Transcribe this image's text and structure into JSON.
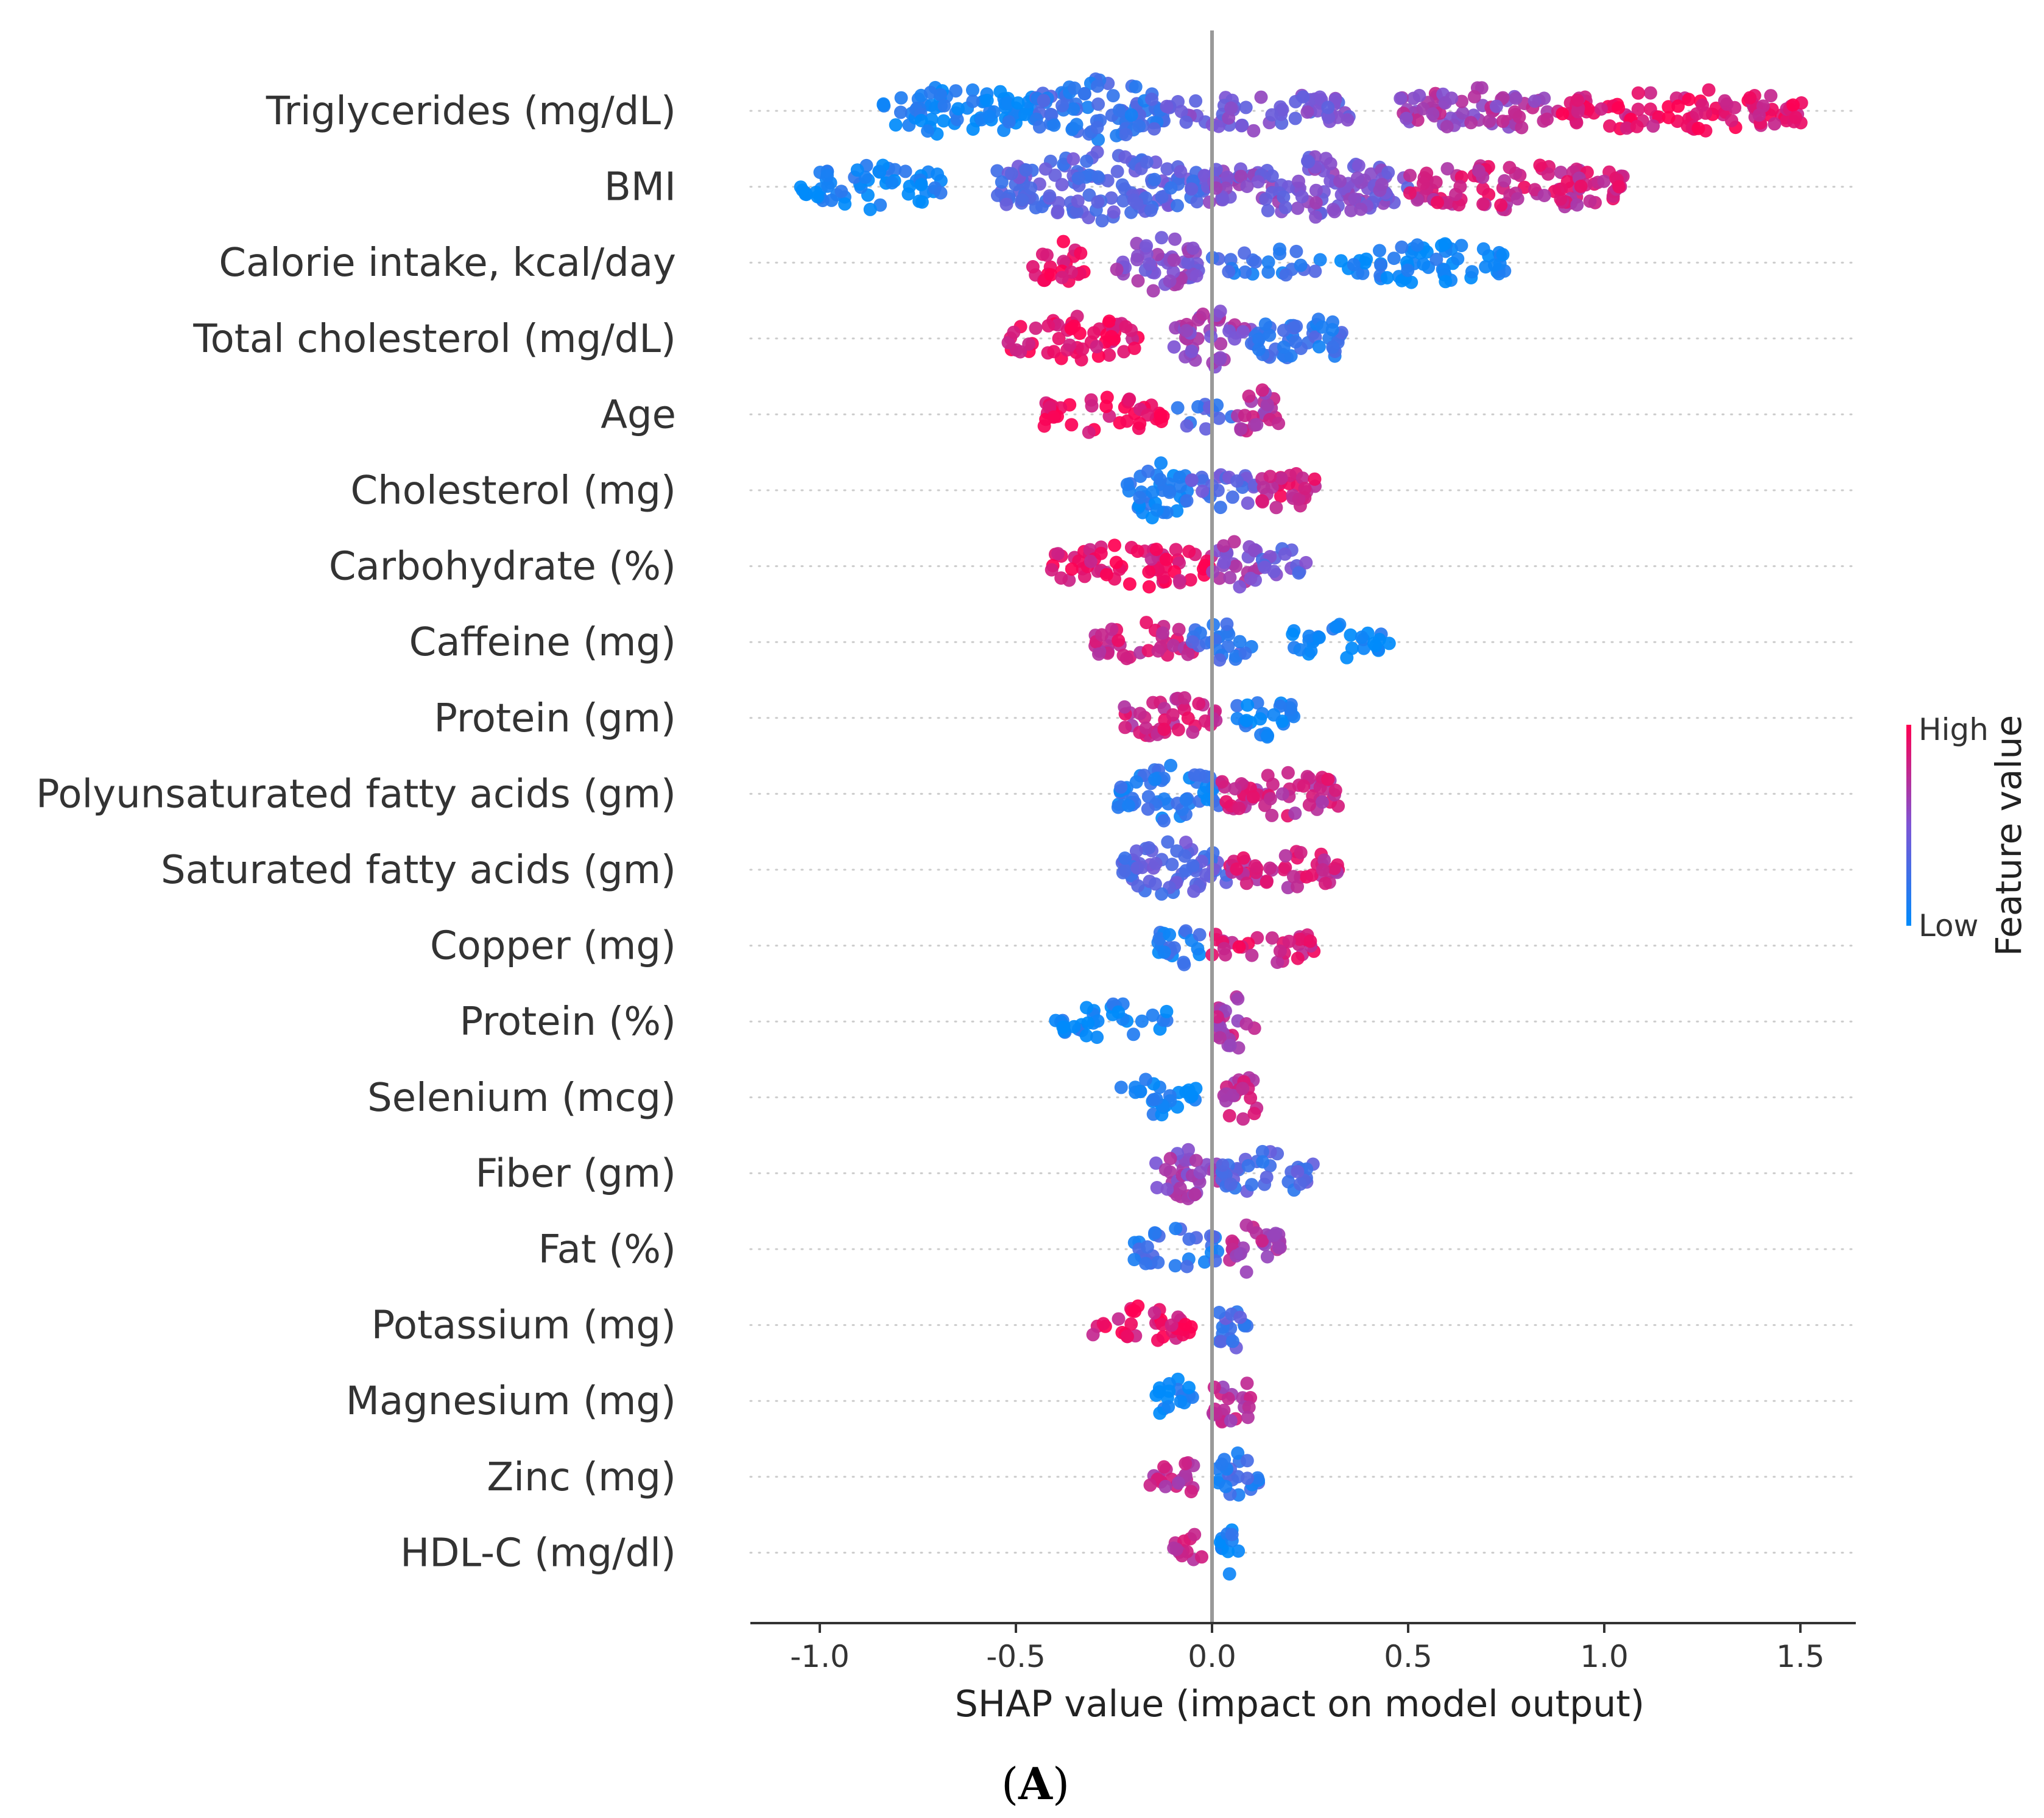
{
  "chart_data": {
    "type": "scatter",
    "subtype": "shap-beeswarm-summary",
    "xlabel": "SHAP value (impact on model output)",
    "xlim": [
      -1.18,
      1.64
    ],
    "xticks": [
      -1.0,
      -0.5,
      0.0,
      0.5,
      1.0,
      1.5
    ],
    "xtick_labels": [
      "-1.0",
      "-0.5",
      "0.0",
      "0.5",
      "1.0",
      "1.5"
    ],
    "zero_line": 0.0,
    "colorbar": {
      "title": "Feature value",
      "high_label": "High",
      "low_label": "Low",
      "high_color": "#ff0052",
      "low_color": "#008bfb"
    },
    "panel_label": {
      "open": "(",
      "letter": "A",
      "close": ")"
    },
    "features": [
      {
        "name": "Triglycerides (mg/dL)",
        "segments": [
          {
            "from": -0.84,
            "to": -0.45,
            "level": 0.05,
            "density": 0.75
          },
          {
            "from": -0.45,
            "to": -0.12,
            "level": 0.22,
            "density": 1.0
          },
          {
            "from": -0.12,
            "to": 0.35,
            "level": 0.45,
            "density": 0.5
          },
          {
            "from": 0.48,
            "to": 0.88,
            "level": 0.65,
            "density": 0.65
          },
          {
            "from": 0.88,
            "to": 1.52,
            "level": 0.9,
            "density": 0.6
          }
        ]
      },
      {
        "name": "BMI",
        "segments": [
          {
            "from": -1.05,
            "to": -0.68,
            "level": 0.05,
            "density": 0.6
          },
          {
            "from": -0.55,
            "to": -0.02,
            "level": 0.35,
            "density": 1.0
          },
          {
            "from": -0.02,
            "to": 0.5,
            "level": 0.5,
            "density": 0.9
          },
          {
            "from": 0.5,
            "to": 1.05,
            "level": 0.8,
            "density": 0.7
          }
        ]
      },
      {
        "name": "Calorie intake, kcal/day",
        "segments": [
          {
            "from": -0.47,
            "to": -0.32,
            "level": 0.95,
            "density": 0.6
          },
          {
            "from": -0.25,
            "to": -0.03,
            "level": 0.55,
            "density": 0.85
          },
          {
            "from": 0.0,
            "to": 0.3,
            "level": 0.2,
            "density": 0.3
          },
          {
            "from": 0.32,
            "to": 0.75,
            "level": 0.05,
            "density": 0.55
          }
        ]
      },
      {
        "name": "Total cholesterol (mg/dL)",
        "segments": [
          {
            "from": -0.52,
            "to": -0.18,
            "level": 0.92,
            "density": 0.65
          },
          {
            "from": -0.1,
            "to": 0.1,
            "level": 0.6,
            "density": 0.85
          },
          {
            "from": 0.1,
            "to": 0.34,
            "level": 0.2,
            "density": 0.8
          }
        ]
      },
      {
        "name": "Age",
        "segments": [
          {
            "from": -0.46,
            "to": -0.12,
            "level": 0.95,
            "density": 0.45
          },
          {
            "from": -0.1,
            "to": 0.06,
            "level": 0.3,
            "density": 0.3
          },
          {
            "from": 0.06,
            "to": 0.17,
            "level": 0.7,
            "density": 0.8
          }
        ]
      },
      {
        "name": "Cholesterol (mg)",
        "segments": [
          {
            "from": -0.22,
            "to": -0.06,
            "level": 0.1,
            "density": 0.85
          },
          {
            "from": -0.06,
            "to": 0.12,
            "level": 0.35,
            "density": 0.5
          },
          {
            "from": 0.12,
            "to": 0.27,
            "level": 0.85,
            "density": 0.75
          }
        ]
      },
      {
        "name": "Carbohydrate (%)",
        "segments": [
          {
            "from": -0.41,
            "to": 0.0,
            "level": 0.9,
            "density": 0.6
          },
          {
            "from": 0.0,
            "to": 0.12,
            "level": 0.6,
            "density": 0.8
          },
          {
            "from": 0.12,
            "to": 0.24,
            "level": 0.4,
            "density": 0.5
          }
        ]
      },
      {
        "name": "Caffeine (mg)",
        "segments": [
          {
            "from": -0.3,
            "to": -0.05,
            "level": 0.8,
            "density": 0.55
          },
          {
            "from": -0.05,
            "to": 0.12,
            "level": 0.25,
            "density": 0.55
          },
          {
            "from": 0.2,
            "to": 0.46,
            "level": 0.05,
            "density": 0.45
          }
        ]
      },
      {
        "name": "Protein (gm)",
        "segments": [
          {
            "from": -0.23,
            "to": 0.02,
            "level": 0.8,
            "density": 0.6
          },
          {
            "from": 0.05,
            "to": 0.21,
            "level": 0.08,
            "density": 0.6
          }
        ]
      },
      {
        "name": "Polyunsaturated fatty acids (gm)",
        "segments": [
          {
            "from": -0.24,
            "to": 0.02,
            "level": 0.15,
            "density": 0.85
          },
          {
            "from": 0.02,
            "to": 0.33,
            "level": 0.78,
            "density": 0.65
          }
        ]
      },
      {
        "name": "Saturated fatty acids (gm)",
        "segments": [
          {
            "from": -0.23,
            "to": 0.04,
            "level": 0.35,
            "density": 0.9
          },
          {
            "from": 0.04,
            "to": 0.33,
            "level": 0.8,
            "density": 0.6
          }
        ]
      },
      {
        "name": "Copper (mg)",
        "segments": [
          {
            "from": -0.14,
            "to": -0.03,
            "level": 0.15,
            "density": 0.75
          },
          {
            "from": 0.0,
            "to": 0.26,
            "level": 0.85,
            "density": 0.45
          }
        ]
      },
      {
        "name": "Protein (%)",
        "segments": [
          {
            "from": -0.4,
            "to": -0.11,
            "level": 0.05,
            "density": 0.45
          },
          {
            "from": 0.01,
            "to": 0.11,
            "level": 0.72,
            "density": 0.85
          }
        ]
      },
      {
        "name": "Selenium (mcg)",
        "segments": [
          {
            "from": -0.25,
            "to": -0.04,
            "level": 0.05,
            "density": 0.5
          },
          {
            "from": 0.03,
            "to": 0.12,
            "level": 0.75,
            "density": 0.8
          }
        ]
      },
      {
        "name": "Fiber (gm)",
        "segments": [
          {
            "from": -0.16,
            "to": 0.02,
            "level": 0.6,
            "density": 0.75
          },
          {
            "from": 0.02,
            "to": 0.26,
            "level": 0.3,
            "density": 0.6
          }
        ]
      },
      {
        "name": "Fat (%)",
        "segments": [
          {
            "from": -0.2,
            "to": 0.02,
            "level": 0.2,
            "density": 0.55
          },
          {
            "from": 0.02,
            "to": 0.18,
            "level": 0.7,
            "density": 0.7
          }
        ]
      },
      {
        "name": "Potassium (mg)",
        "segments": [
          {
            "from": -0.31,
            "to": -0.05,
            "level": 0.9,
            "density": 0.5
          },
          {
            "from": 0.01,
            "to": 0.09,
            "level": 0.3,
            "density": 0.8
          }
        ]
      },
      {
        "name": "Magnesium (mg)",
        "segments": [
          {
            "from": -0.15,
            "to": -0.04,
            "level": 0.05,
            "density": 0.6
          },
          {
            "from": 0.0,
            "to": 0.1,
            "level": 0.7,
            "density": 0.85
          }
        ]
      },
      {
        "name": "Zinc (mg)",
        "segments": [
          {
            "from": -0.17,
            "to": -0.03,
            "level": 0.75,
            "density": 0.55
          },
          {
            "from": 0.0,
            "to": 0.12,
            "level": 0.2,
            "density": 0.7
          }
        ]
      },
      {
        "name": "HDL-C (mg/dl)",
        "segments": [
          {
            "from": -0.1,
            "to": -0.02,
            "level": 0.75,
            "density": 0.55
          },
          {
            "from": 0.02,
            "to": 0.07,
            "level": 0.1,
            "density": 0.7
          }
        ]
      }
    ]
  }
}
